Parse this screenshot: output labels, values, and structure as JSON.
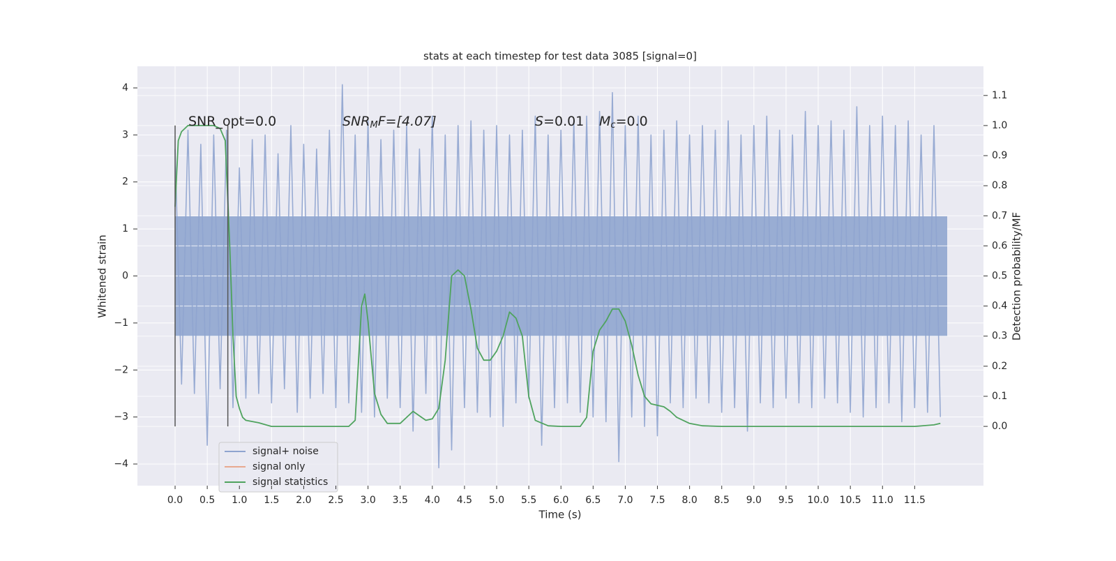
{
  "chart_data": {
    "type": "line",
    "title": "stats at each timestep for test data 3085 [signal=0]",
    "xlabel": "Time (s)",
    "ylabel": "Whitened strain",
    "y2label": "Detection probability/MF",
    "annotations": [
      [
        "SNR_opt=0.0"
      ],
      [
        "SNR",
        "M",
        "F=[4.07]"
      ],
      [
        "S",
        "=0.01"
      ],
      [
        "M",
        "c",
        "=0.0"
      ]
    ],
    "xlim": [
      -0.586,
      12.57
    ],
    "ylim": [
      -4.46,
      4.46
    ],
    "y2lim": [
      -0.197,
      1.197
    ],
    "xticks": [
      {
        "value": 0,
        "label": "0.0"
      },
      0.5,
      {
        "value": 1,
        "label": "1.0"
      },
      1.5,
      {
        "value": 2,
        "label": "2.0"
      },
      2.5,
      {
        "value": 3,
        "label": "3.0"
      },
      3.5,
      {
        "value": 4,
        "label": "4.0"
      },
      4.5,
      {
        "value": 5,
        "label": "5.0"
      },
      5.5,
      {
        "value": 6,
        "label": "6.0"
      },
      6.5,
      {
        "value": 7,
        "label": "7.0"
      },
      7.5,
      {
        "value": 8,
        "label": "8.0"
      },
      8.5,
      {
        "value": 9,
        "label": "9.0"
      },
      9.5,
      {
        "value": 10,
        "label": "10.0"
      },
      10.5,
      {
        "value": 11,
        "label": "11.0"
      },
      11.5
    ],
    "yticks": [
      {
        "value": -4,
        "label": "−4"
      },
      {
        "value": -3,
        "label": "−3"
      },
      {
        "value": -2,
        "label": "−2"
      },
      {
        "value": -1,
        "label": "−1"
      },
      0,
      1,
      2,
      3,
      4
    ],
    "y2ticks": [
      {
        "value": 0,
        "label": "0.0"
      },
      0.1,
      0.2,
      0.3,
      0.4,
      0.5,
      0.6,
      0.7,
      0.8,
      0.9,
      {
        "value": 1,
        "label": "1.0"
      },
      1.1
    ],
    "grid": true,
    "legend": "lower left",
    "vlines": {
      "x": [
        0,
        0.82
      ],
      "ymin": -3.2,
      "ymax": 3.2,
      "color": "#555555"
    },
    "series": [
      {
        "name": "signal+ noise",
        "color": "#8fa4cf",
        "x": [
          0,
          0.1,
          0.2,
          0.3,
          0.4,
          0.5,
          0.6,
          0.7,
          0.8,
          0.9,
          1,
          1.1,
          1.2,
          1.3,
          1.4,
          1.5,
          1.6,
          1.7,
          1.8,
          1.9,
          2,
          2.1,
          2.2,
          2.3,
          2.4,
          2.5,
          2.6,
          2.7,
          2.8,
          2.9,
          3,
          3.1,
          3.2,
          3.3,
          3.4,
          3.5,
          3.6,
          3.7,
          3.8,
          3.9,
          4,
          4.1,
          4.2,
          4.3,
          4.4,
          4.5,
          4.6,
          4.7,
          4.8,
          4.9,
          5,
          5.1,
          5.2,
          5.3,
          5.4,
          5.5,
          5.6,
          5.7,
          5.8,
          5.9,
          6,
          6.1,
          6.2,
          6.3,
          6.4,
          6.5,
          6.6,
          6.7,
          6.8,
          6.9,
          7,
          7.1,
          7.2,
          7.3,
          7.4,
          7.5,
          7.6,
          7.7,
          7.8,
          7.9,
          8,
          8.1,
          8.2,
          8.3,
          8.4,
          8.5,
          8.6,
          8.7,
          8.8,
          8.9,
          9,
          9.1,
          9.2,
          9.3,
          9.4,
          9.5,
          9.6,
          9.7,
          9.8,
          9.9,
          10,
          10.1,
          10.2,
          10.3,
          10.4,
          10.5,
          10.6,
          10.7,
          10.8,
          10.9,
          11,
          11.1,
          11.2,
          11.3,
          11.4,
          11.5,
          11.6,
          11.7,
          11.8,
          11.9
        ],
        "values": [
          2.7,
          -2.3,
          3.1,
          -2.5,
          2.8,
          -3.6,
          3.0,
          -2.4,
          3.1,
          -2.8,
          2.3,
          -2.6,
          2.9,
          -2.5,
          3.0,
          -2.7,
          2.6,
          -2.4,
          3.2,
          -2.9,
          2.8,
          -2.6,
          2.7,
          -2.5,
          3.1,
          -2.8,
          4.07,
          -2.7,
          3.0,
          -2.9,
          3.3,
          -3.0,
          2.9,
          -2.6,
          3.1,
          -2.8,
          3.2,
          -3.3,
          2.7,
          -2.5,
          3.4,
          -4.08,
          3.0,
          -3.7,
          3.2,
          -2.8,
          3.3,
          -2.9,
          3.1,
          -3.0,
          3.2,
          -3.2,
          3.0,
          -2.7,
          3.1,
          -2.6,
          3.4,
          -3.6,
          3.0,
          -2.8,
          3.1,
          -2.7,
          3.3,
          -2.9,
          3.4,
          -3.0,
          3.5,
          -3.1,
          3.9,
          -3.95,
          3.2,
          -3.0,
          3.4,
          -3.2,
          3.0,
          -3.4,
          3.1,
          -2.7,
          3.3,
          -2.8,
          3.0,
          -2.6,
          3.2,
          -2.7,
          3.1,
          -2.9,
          3.3,
          -2.8,
          3.0,
          -3.3,
          3.2,
          -2.7,
          3.4,
          -2.8,
          3.1,
          -2.6,
          3.0,
          -2.7,
          3.5,
          -2.8,
          3.2,
          -2.6,
          3.3,
          -2.7,
          3.1,
          -2.9,
          3.6,
          -3.0,
          3.2,
          -2.8,
          3.4,
          -2.7,
          3.2,
          -3.1,
          3.3,
          -2.8,
          3.0,
          -2.9,
          3.2,
          -3.0
        ]
      },
      {
        "name": "signal only",
        "color": "#e8a98f",
        "x": [],
        "values": []
      },
      {
        "name": "signal statistics",
        "color": "#4fa35e",
        "axis": "y2",
        "x": [
          0,
          0.05,
          0.1,
          0.2,
          0.4,
          0.6,
          0.7,
          0.78,
          0.85,
          0.9,
          0.95,
          1,
          1.05,
          1.1,
          1.3,
          1.5,
          2,
          2.5,
          2.7,
          2.8,
          2.9,
          2.95,
          3,
          3.1,
          3.2,
          3.3,
          3.5,
          3.6,
          3.7,
          3.8,
          3.9,
          4,
          4.1,
          4.2,
          4.3,
          4.4,
          4.5,
          4.6,
          4.7,
          4.8,
          4.9,
          5,
          5.1,
          5.2,
          5.3,
          5.4,
          5.5,
          5.6,
          5.8,
          6,
          6.3,
          6.4,
          6.5,
          6.6,
          6.7,
          6.8,
          6.9,
          7,
          7.1,
          7.2,
          7.3,
          7.4,
          7.6,
          7.7,
          7.8,
          8,
          8.2,
          8.5,
          9.5,
          10,
          11,
          11.5,
          11.8,
          11.9
        ],
        "values": [
          0.73,
          0.95,
          0.98,
          1.0,
          1.0,
          1.0,
          0.99,
          0.95,
          0.6,
          0.3,
          0.1,
          0.06,
          0.03,
          0.02,
          0.012,
          0.0,
          0.0,
          0.0,
          0.0,
          0.02,
          0.4,
          0.44,
          0.35,
          0.11,
          0.04,
          0.01,
          0.01,
          0.03,
          0.05,
          0.035,
          0.02,
          0.025,
          0.06,
          0.22,
          0.5,
          0.52,
          0.5,
          0.39,
          0.26,
          0.22,
          0.22,
          0.25,
          0.3,
          0.38,
          0.36,
          0.3,
          0.1,
          0.02,
          0.002,
          0.0,
          0.0,
          0.03,
          0.25,
          0.32,
          0.35,
          0.39,
          0.39,
          0.35,
          0.27,
          0.17,
          0.1,
          0.075,
          0.065,
          0.05,
          0.03,
          0.01,
          0.002,
          0.0,
          0.0,
          0.0,
          0.0,
          0.0,
          0.005,
          0.01
        ]
      }
    ]
  }
}
